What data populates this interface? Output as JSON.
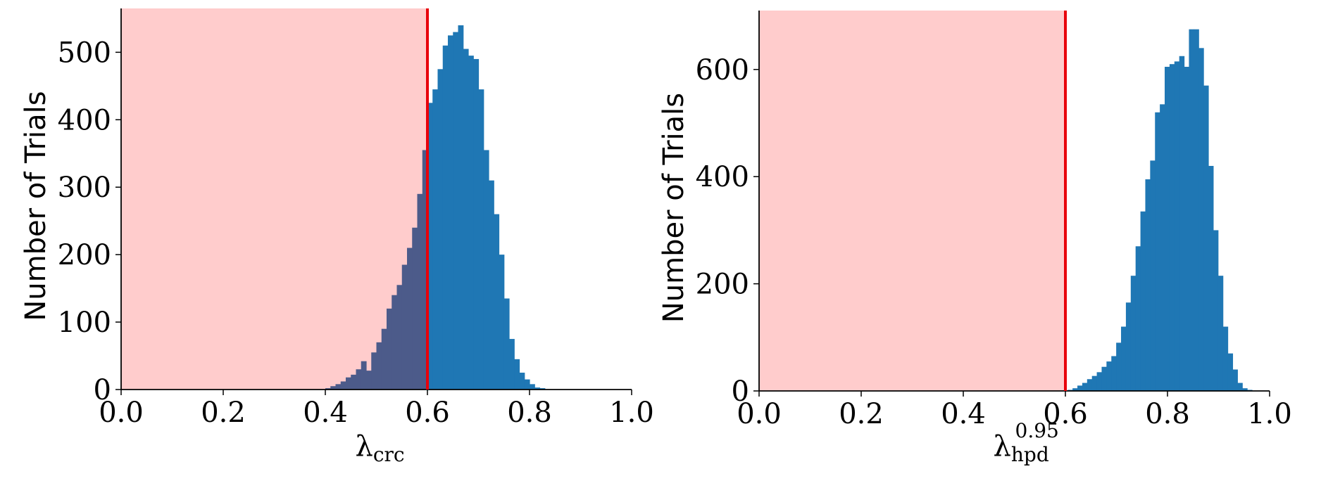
{
  "colors": {
    "bar": "#1f77b4",
    "shade": "#ffcccc",
    "shade_opacity": 1.0,
    "threshold_line": "#e8000b",
    "overlap_bar": "#4c5b8a"
  },
  "chart_data": [
    {
      "type": "bar",
      "title": "",
      "xlabel_symbol": "λ",
      "xlabel_sub": "crc",
      "xlabel_sup": "",
      "ylabel": "Number of Trials",
      "xlim": [
        0.0,
        1.0
      ],
      "ylim": [
        0,
        565
      ],
      "xticks": [
        "0.0",
        "0.2",
        "0.4",
        "0.6",
        "0.8",
        "1.0"
      ],
      "yticks": [
        "0",
        "100",
        "200",
        "300",
        "400",
        "500"
      ],
      "threshold": 0.6,
      "shaded_range": [
        0.0,
        0.6
      ],
      "bin_width": 0.01,
      "bin_start": 0.4,
      "values": [
        2,
        5,
        8,
        12,
        18,
        22,
        30,
        42,
        28,
        55,
        70,
        90,
        120,
        140,
        155,
        185,
        210,
        240,
        290,
        355,
        425,
        445,
        475,
        510,
        525,
        530,
        540,
        505,
        495,
        490,
        445,
        355,
        310,
        260,
        200,
        135,
        75,
        45,
        25,
        15,
        8,
        3,
        2
      ]
    },
    {
      "type": "bar",
      "title": "",
      "xlabel_symbol": "λ",
      "xlabel_sub": "hpd",
      "xlabel_sup": "0.95",
      "ylabel": "Number of Trials",
      "xlim": [
        0.0,
        1.0
      ],
      "ylim": [
        0,
        710
      ],
      "xticks": [
        "0.0",
        "0.2",
        "0.4",
        "0.6",
        "0.8",
        "1.0"
      ],
      "yticks": [
        "0",
        "200",
        "400",
        "600"
      ],
      "threshold": 0.6,
      "shaded_range": [
        0.0,
        0.6
      ],
      "bin_width": 0.0095,
      "bin_start": 0.595,
      "values": [
        1,
        2,
        5,
        10,
        15,
        22,
        28,
        35,
        45,
        55,
        65,
        90,
        120,
        165,
        215,
        270,
        335,
        395,
        430,
        520,
        535,
        605,
        610,
        615,
        625,
        605,
        675,
        675,
        640,
        570,
        420,
        300,
        215,
        120,
        70,
        40,
        15,
        5,
        2
      ]
    }
  ]
}
